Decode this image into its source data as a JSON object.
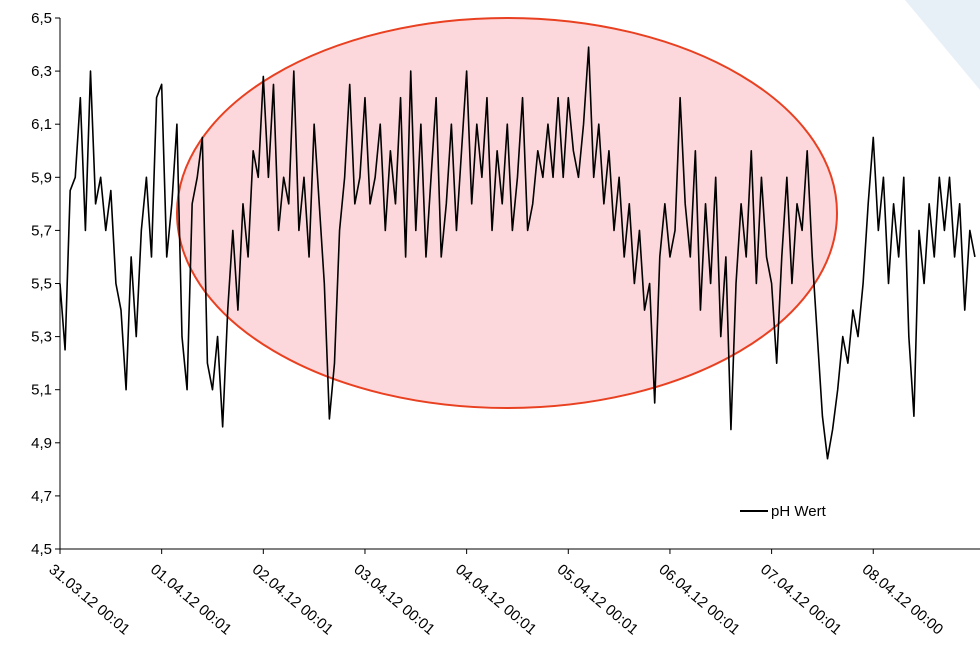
{
  "chart_data": {
    "type": "line",
    "x": [
      0,
      0.05,
      0.1,
      0.15,
      0.2,
      0.25,
      0.3,
      0.35,
      0.4,
      0.45,
      0.5,
      0.55,
      0.6,
      0.65,
      0.7,
      0.75,
      0.8,
      0.85,
      0.9,
      0.95,
      1,
      1.05,
      1.1,
      1.15,
      1.2,
      1.25,
      1.3,
      1.35,
      1.4,
      1.45,
      1.5,
      1.55,
      1.6,
      1.65,
      1.7,
      1.75,
      1.8,
      1.85,
      1.9,
      1.95,
      2,
      2.05,
      2.1,
      2.15,
      2.2,
      2.25,
      2.3,
      2.35,
      2.4,
      2.45,
      2.5,
      2.55,
      2.6,
      2.65,
      2.7,
      2.75,
      2.8,
      2.85,
      2.9,
      2.95,
      3,
      3.05,
      3.1,
      3.15,
      3.2,
      3.25,
      3.3,
      3.35,
      3.4,
      3.45,
      3.5,
      3.55,
      3.6,
      3.65,
      3.7,
      3.75,
      3.8,
      3.85,
      3.9,
      3.95,
      4,
      4.05,
      4.1,
      4.15,
      4.2,
      4.25,
      4.3,
      4.35,
      4.4,
      4.45,
      4.5,
      4.55,
      4.6,
      4.65,
      4.7,
      4.75,
      4.8,
      4.85,
      4.9,
      4.95,
      5,
      5.05,
      5.1,
      5.15,
      5.2,
      5.25,
      5.3,
      5.35,
      5.4,
      5.45,
      5.5,
      5.55,
      5.6,
      5.65,
      5.7,
      5.75,
      5.8,
      5.85,
      5.9,
      5.95,
      6,
      6.05,
      6.1,
      6.15,
      6.2,
      6.25,
      6.3,
      6.35,
      6.4,
      6.45,
      6.5,
      6.55,
      6.6,
      6.65,
      6.7,
      6.75,
      6.8,
      6.85,
      6.9,
      6.95,
      7,
      7.05,
      7.1,
      7.15,
      7.2,
      7.25,
      7.3,
      7.35,
      7.4,
      7.45,
      7.5,
      7.55,
      7.6,
      7.65,
      7.7,
      7.75,
      7.8,
      7.85,
      7.9,
      7.95,
      8,
      8.05,
      8.1,
      8.15,
      8.2,
      8.25,
      8.3,
      8.35,
      8.4,
      8.45,
      8.5,
      8.55,
      8.6,
      8.65,
      8.7,
      8.75,
      8.8,
      8.85,
      8.9,
      8.95,
      9
    ],
    "series": [
      {
        "name": "pH Wert",
        "color": "#000000",
        "values": [
          5.5,
          5.25,
          5.85,
          5.9,
          6.2,
          5.7,
          6.3,
          5.8,
          5.9,
          5.7,
          5.85,
          5.5,
          5.4,
          5.1,
          5.6,
          5.3,
          5.7,
          5.9,
          5.6,
          6.2,
          6.25,
          5.6,
          5.8,
          6.1,
          5.3,
          5.1,
          5.8,
          5.9,
          6.05,
          5.2,
          5.1,
          5.3,
          4.96,
          5.4,
          5.7,
          5.4,
          5.8,
          5.6,
          6.0,
          5.9,
          6.28,
          5.9,
          6.25,
          5.7,
          5.9,
          5.8,
          6.3,
          5.7,
          5.9,
          5.6,
          6.1,
          5.8,
          5.5,
          4.99,
          5.2,
          5.7,
          5.9,
          6.25,
          5.8,
          5.9,
          6.2,
          5.8,
          5.9,
          6.1,
          5.7,
          6.0,
          5.8,
          6.2,
          5.6,
          6.3,
          5.7,
          6.1,
          5.6,
          5.9,
          6.2,
          5.6,
          5.8,
          6.1,
          5.7,
          6.0,
          6.3,
          5.8,
          6.1,
          5.9,
          6.2,
          5.7,
          6.0,
          5.8,
          6.1,
          5.7,
          5.9,
          6.2,
          5.7,
          5.8,
          6.0,
          5.9,
          6.1,
          5.9,
          6.2,
          5.9,
          6.2,
          6.0,
          5.9,
          6.1,
          6.39,
          5.9,
          6.1,
          5.8,
          6.0,
          5.7,
          5.9,
          5.6,
          5.8,
          5.5,
          5.7,
          5.4,
          5.5,
          5.05,
          5.6,
          5.8,
          5.6,
          5.7,
          6.2,
          5.8,
          5.6,
          6.0,
          5.4,
          5.8,
          5.5,
          5.9,
          5.3,
          5.6,
          4.95,
          5.5,
          5.8,
          5.6,
          6.0,
          5.5,
          5.9,
          5.6,
          5.5,
          5.2,
          5.6,
          5.9,
          5.5,
          5.8,
          5.7,
          6.0,
          5.6,
          5.3,
          5.0,
          4.84,
          4.95,
          5.1,
          5.3,
          5.2,
          5.4,
          5.3,
          5.5,
          5.8,
          6.05,
          5.7,
          5.9,
          5.5,
          5.8,
          5.6,
          5.9,
          5.3,
          5.0,
          5.7,
          5.5,
          5.8,
          5.6,
          5.9,
          5.7,
          5.9,
          5.6,
          5.8,
          5.4,
          5.7,
          5.6
        ]
      }
    ],
    "xlim": [
      0,
      9.05
    ],
    "xticks": [
      {
        "value": 0,
        "label": "31.03.12 00:01"
      },
      {
        "value": 1,
        "label": "01.04.12 00:01"
      },
      {
        "value": 2,
        "label": "02.04.12 00:01"
      },
      {
        "value": 3,
        "label": "03.04.12 00:01"
      },
      {
        "value": 4,
        "label": "04.04.12 00:01"
      },
      {
        "value": 5,
        "label": "05.04.12 00:01"
      },
      {
        "value": 6,
        "label": "06.04.12 00:01"
      },
      {
        "value": 7,
        "label": "07.04.12 00:01"
      },
      {
        "value": 8,
        "label": "08.04.12 00:00"
      }
    ],
    "ylim": [
      4.5,
      6.5
    ],
    "yticks": [
      {
        "value": 4.5,
        "label": "4,5"
      },
      {
        "value": 4.7,
        "label": "4,7"
      },
      {
        "value": 4.9,
        "label": "4,9"
      },
      {
        "value": 5.1,
        "label": "5,1"
      },
      {
        "value": 5.3,
        "label": "5,3"
      },
      {
        "value": 5.5,
        "label": "5,5"
      },
      {
        "value": 5.7,
        "label": "5,7"
      },
      {
        "value": 5.9,
        "label": "5,9"
      },
      {
        "value": 6.1,
        "label": "6,1"
      },
      {
        "value": 6.3,
        "label": "6,3"
      },
      {
        "value": 6.5,
        "label": "6,5"
      }
    ],
    "legend": "bottom-right",
    "grid": false
  }
}
